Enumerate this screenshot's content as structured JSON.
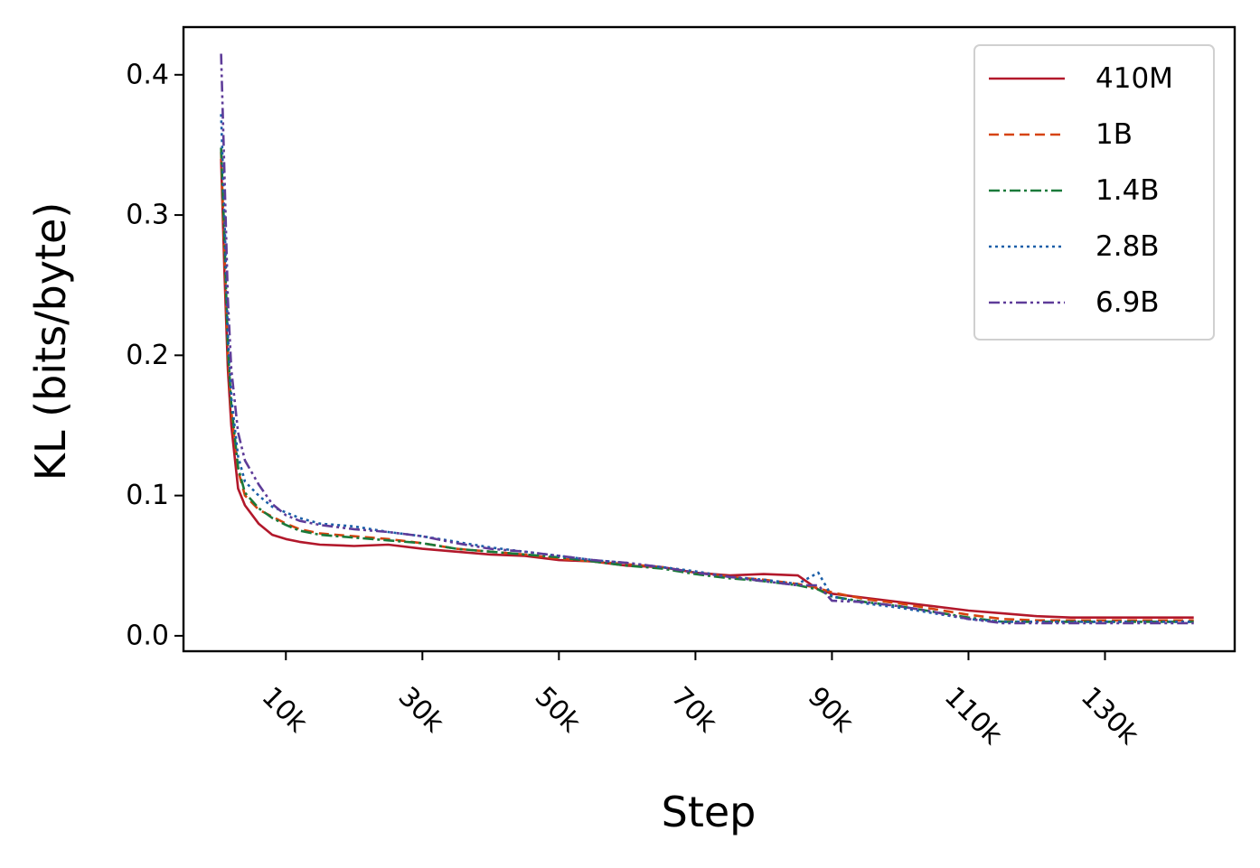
{
  "chart_data": {
    "type": "line",
    "title": "",
    "xlabel": "Step",
    "ylabel": "KL (bits/byte)",
    "xlim": [
      -5000,
      149000
    ],
    "ylim": [
      -0.011,
      0.434
    ],
    "x_ticks": [
      10000,
      30000,
      50000,
      70000,
      90000,
      110000,
      130000
    ],
    "x_tick_labels": [
      "10k",
      "30k",
      "50k",
      "70k",
      "90k",
      "110k",
      "130k"
    ],
    "y_ticks": [
      0.0,
      0.1,
      0.2,
      0.3,
      0.4
    ],
    "y_tick_labels": [
      "0.0",
      "0.1",
      "0.2",
      "0.3",
      "0.4"
    ],
    "grid": false,
    "legend_position": "top-right",
    "x": [
      512,
      1000,
      1500,
      2000,
      3000,
      4000,
      6000,
      8000,
      10000,
      12000,
      15000,
      20000,
      25000,
      30000,
      35000,
      40000,
      45000,
      50000,
      55000,
      60000,
      65000,
      70000,
      75000,
      80000,
      85000,
      88000,
      90000,
      95000,
      100000,
      105000,
      110000,
      115000,
      120000,
      125000,
      130000,
      135000,
      140000,
      143000
    ],
    "series": [
      {
        "name": "410M",
        "color": "#b2182b",
        "dash": "solid",
        "values": [
          0.34,
          0.26,
          0.19,
          0.15,
          0.105,
          0.093,
          0.08,
          0.072,
          0.069,
          0.067,
          0.065,
          0.064,
          0.065,
          0.062,
          0.06,
          0.058,
          0.057,
          0.054,
          0.053,
          0.05,
          0.049,
          0.045,
          0.043,
          0.044,
          0.043,
          0.033,
          0.03,
          0.027,
          0.024,
          0.021,
          0.018,
          0.016,
          0.014,
          0.013,
          0.013,
          0.013,
          0.013,
          0.013
        ]
      },
      {
        "name": "1B",
        "color": "#d6430f",
        "dash": "dashed",
        "values": [
          0.345,
          0.275,
          0.2,
          0.16,
          0.118,
          0.1,
          0.09,
          0.085,
          0.08,
          0.076,
          0.073,
          0.071,
          0.069,
          0.066,
          0.062,
          0.06,
          0.058,
          0.055,
          0.053,
          0.051,
          0.049,
          0.045,
          0.042,
          0.04,
          0.037,
          0.034,
          0.031,
          0.026,
          0.023,
          0.019,
          0.015,
          0.012,
          0.011,
          0.011,
          0.011,
          0.011,
          0.011,
          0.011
        ]
      },
      {
        "name": "1.4B",
        "color": "#1a7a3a",
        "dash": "dashdot",
        "values": [
          0.348,
          0.285,
          0.205,
          0.165,
          0.12,
          0.102,
          0.091,
          0.084,
          0.079,
          0.075,
          0.072,
          0.07,
          0.068,
          0.066,
          0.062,
          0.06,
          0.058,
          0.056,
          0.053,
          0.05,
          0.048,
          0.044,
          0.041,
          0.039,
          0.036,
          0.033,
          0.028,
          0.024,
          0.021,
          0.017,
          0.013,
          0.01,
          0.01,
          0.01,
          0.01,
          0.01,
          0.01,
          0.01
        ]
      },
      {
        "name": "2.8B",
        "color": "#1b5fa8",
        "dash": "dotted",
        "values": [
          0.372,
          0.3,
          0.215,
          0.17,
          0.128,
          0.11,
          0.1,
          0.092,
          0.088,
          0.084,
          0.08,
          0.078,
          0.074,
          0.071,
          0.067,
          0.063,
          0.06,
          0.057,
          0.054,
          0.052,
          0.049,
          0.046,
          0.042,
          0.04,
          0.037,
          0.045,
          0.028,
          0.023,
          0.02,
          0.016,
          0.012,
          0.01,
          0.01,
          0.01,
          0.01,
          0.01,
          0.01,
          0.01
        ]
      },
      {
        "name": "6.9B",
        "color": "#5e3c99",
        "dash": "dashdotdot",
        "values": [
          0.415,
          0.33,
          0.24,
          0.19,
          0.145,
          0.125,
          0.108,
          0.094,
          0.086,
          0.082,
          0.079,
          0.076,
          0.074,
          0.071,
          0.066,
          0.062,
          0.06,
          0.057,
          0.054,
          0.052,
          0.049,
          0.045,
          0.042,
          0.039,
          0.036,
          0.036,
          0.025,
          0.024,
          0.021,
          0.017,
          0.012,
          0.009,
          0.009,
          0.009,
          0.009,
          0.009,
          0.009,
          0.009
        ]
      }
    ]
  }
}
